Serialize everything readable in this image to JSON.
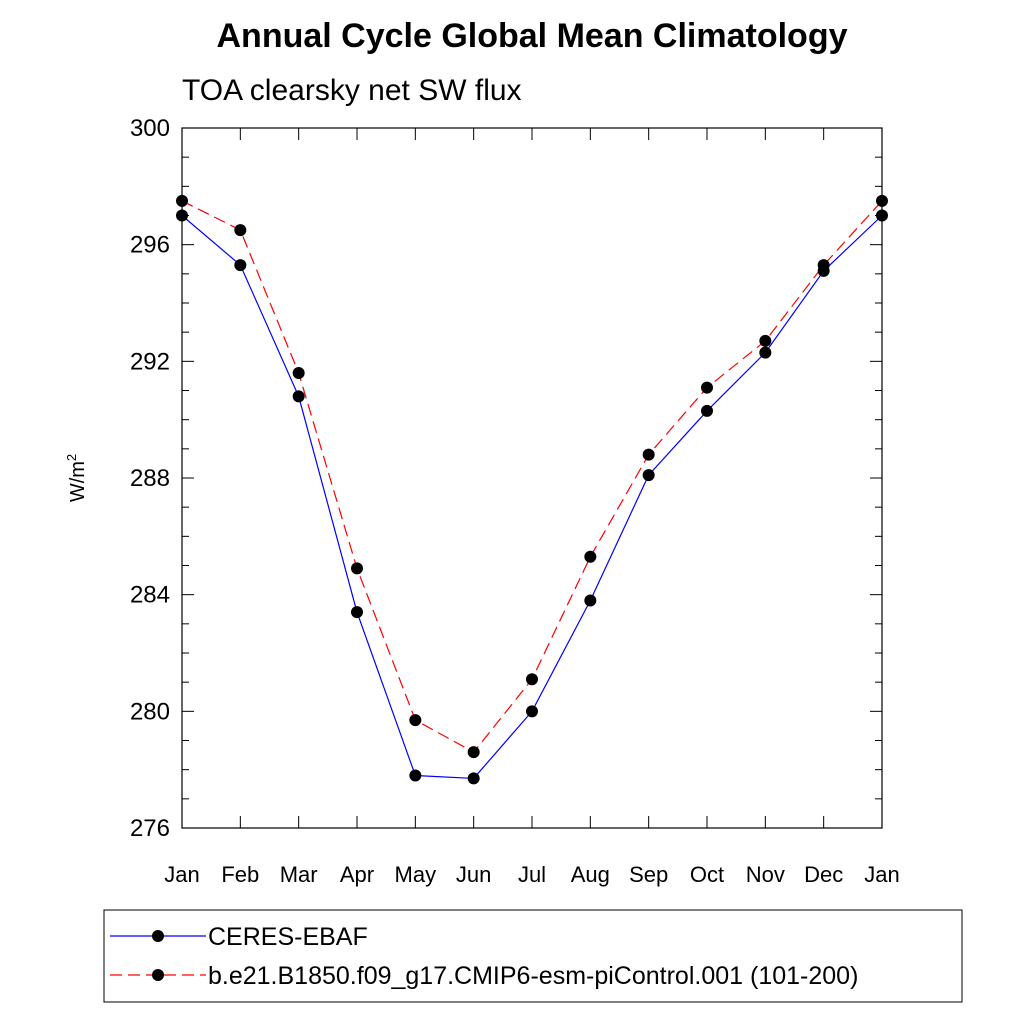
{
  "chart_data": {
    "type": "line",
    "title": "Annual Cycle Global Mean Climatology",
    "subtitle": "TOA clearsky net SW flux",
    "ylabel_base": "W/m",
    "ylabel_sup": "2",
    "xlabel": "",
    "categories": [
      "Jan",
      "Feb",
      "Mar",
      "Apr",
      "May",
      "Jun",
      "Jul",
      "Aug",
      "Sep",
      "Oct",
      "Nov",
      "Dec",
      "Jan"
    ],
    "ylim": [
      276,
      300
    ],
    "yticks": [
      "276",
      "280",
      "284",
      "288",
      "292",
      "296",
      "300"
    ],
    "grid": false,
    "legend_placement": "bottom",
    "series": [
      {
        "name": "CERES-EBAF",
        "color": "#0000ff",
        "line_style": "solid",
        "values": [
          297.0,
          295.3,
          290.8,
          283.4,
          277.8,
          277.7,
          280.0,
          283.8,
          288.1,
          290.3,
          292.3,
          295.1,
          297.0
        ]
      },
      {
        "name": "b.e21.B1850.f09_g17.CMIP6-esm-piControl.001 (101-200)",
        "color": "#ff0000",
        "line_style": "dashed",
        "values": [
          297.5,
          296.5,
          291.6,
          284.9,
          279.7,
          278.6,
          281.1,
          285.3,
          288.8,
          291.1,
          292.7,
          295.3,
          297.5
        ]
      }
    ]
  }
}
